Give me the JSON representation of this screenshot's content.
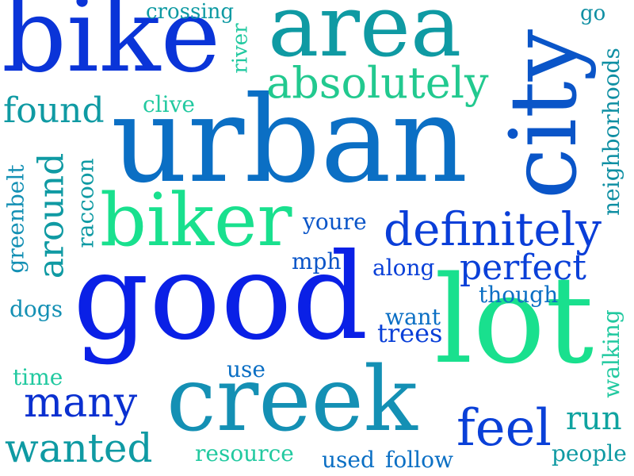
{
  "palette": {
    "blue": "#0a28e0",
    "mid_blue": "#0b6fc4",
    "teal": "#0f9aa3",
    "green": "#19e08e",
    "light_green": "#22c9a0",
    "sea": "#1490b4"
  },
  "words": [
    {
      "id": "bike",
      "text": "bike",
      "color": "#0a34d8"
    },
    {
      "id": "area",
      "text": "area",
      "color": "#0f9aa3"
    },
    {
      "id": "city",
      "text": "city",
      "color": "#0a55c8"
    },
    {
      "id": "urban",
      "text": "urban",
      "color": "#0b6fc4"
    },
    {
      "id": "good",
      "text": "good",
      "color": "#0a20e6"
    },
    {
      "id": "lot",
      "text": "lot",
      "color": "#19e08e"
    },
    {
      "id": "creek",
      "text": "creek",
      "color": "#1490b4"
    },
    {
      "id": "biker",
      "text": "biker",
      "color": "#19e08e"
    },
    {
      "id": "absolutely",
      "text": "absolutely",
      "color": "#22c98f"
    },
    {
      "id": "definitely",
      "text": "definitely",
      "color": "#0a3ed8"
    },
    {
      "id": "found",
      "text": "found",
      "color": "#0f9aa3"
    },
    {
      "id": "around",
      "text": "around",
      "color": "#0f9aa3"
    },
    {
      "id": "many",
      "text": "many",
      "color": "#0a30d0"
    },
    {
      "id": "feel",
      "text": "feel",
      "color": "#0a40d8"
    },
    {
      "id": "wanted",
      "text": "wanted",
      "color": "#0f9aa3"
    },
    {
      "id": "perfect",
      "text": "perfect",
      "color": "#0a40d8"
    },
    {
      "id": "run",
      "text": "run",
      "color": "#0fa3a0"
    },
    {
      "id": "crossing",
      "text": "crossing",
      "color": "#0f9aa3"
    },
    {
      "id": "go",
      "text": "go",
      "color": "#0f8fa3"
    },
    {
      "id": "river",
      "text": "river",
      "color": "#22c9a0"
    },
    {
      "id": "clive",
      "text": "clive",
      "color": "#22c9a0"
    },
    {
      "id": "neighborhoods",
      "text": "neighborhoods",
      "color": "#0f8fa3"
    },
    {
      "id": "greenbelt",
      "text": "greenbelt",
      "color": "#1490b4"
    },
    {
      "id": "raccoon",
      "text": "raccoon",
      "color": "#0f9aa3"
    },
    {
      "id": "youre",
      "text": "youre",
      "color": "#0a55c8"
    },
    {
      "id": "mph",
      "text": "mph",
      "color": "#0a55c8"
    },
    {
      "id": "along",
      "text": "along",
      "color": "#0a40d8"
    },
    {
      "id": "though",
      "text": "though",
      "color": "#0b6fc4"
    },
    {
      "id": "want",
      "text": "want",
      "color": "#0b6fc4"
    },
    {
      "id": "trees",
      "text": "trees",
      "color": "#0a40d8"
    },
    {
      "id": "dogs",
      "text": "dogs",
      "color": "#1490b4"
    },
    {
      "id": "time",
      "text": "time",
      "color": "#22c9a0"
    },
    {
      "id": "use",
      "text": "use",
      "color": "#0b6fc4"
    },
    {
      "id": "walking",
      "text": "walking",
      "color": "#22c9a0"
    },
    {
      "id": "resource",
      "text": "resource",
      "color": "#22c9a0"
    },
    {
      "id": "used",
      "text": "used",
      "color": "#0b6fc4"
    },
    {
      "id": "follow",
      "text": "follow",
      "color": "#0b6fc4"
    },
    {
      "id": "people",
      "text": "people",
      "color": "#0f9aa3"
    }
  ]
}
